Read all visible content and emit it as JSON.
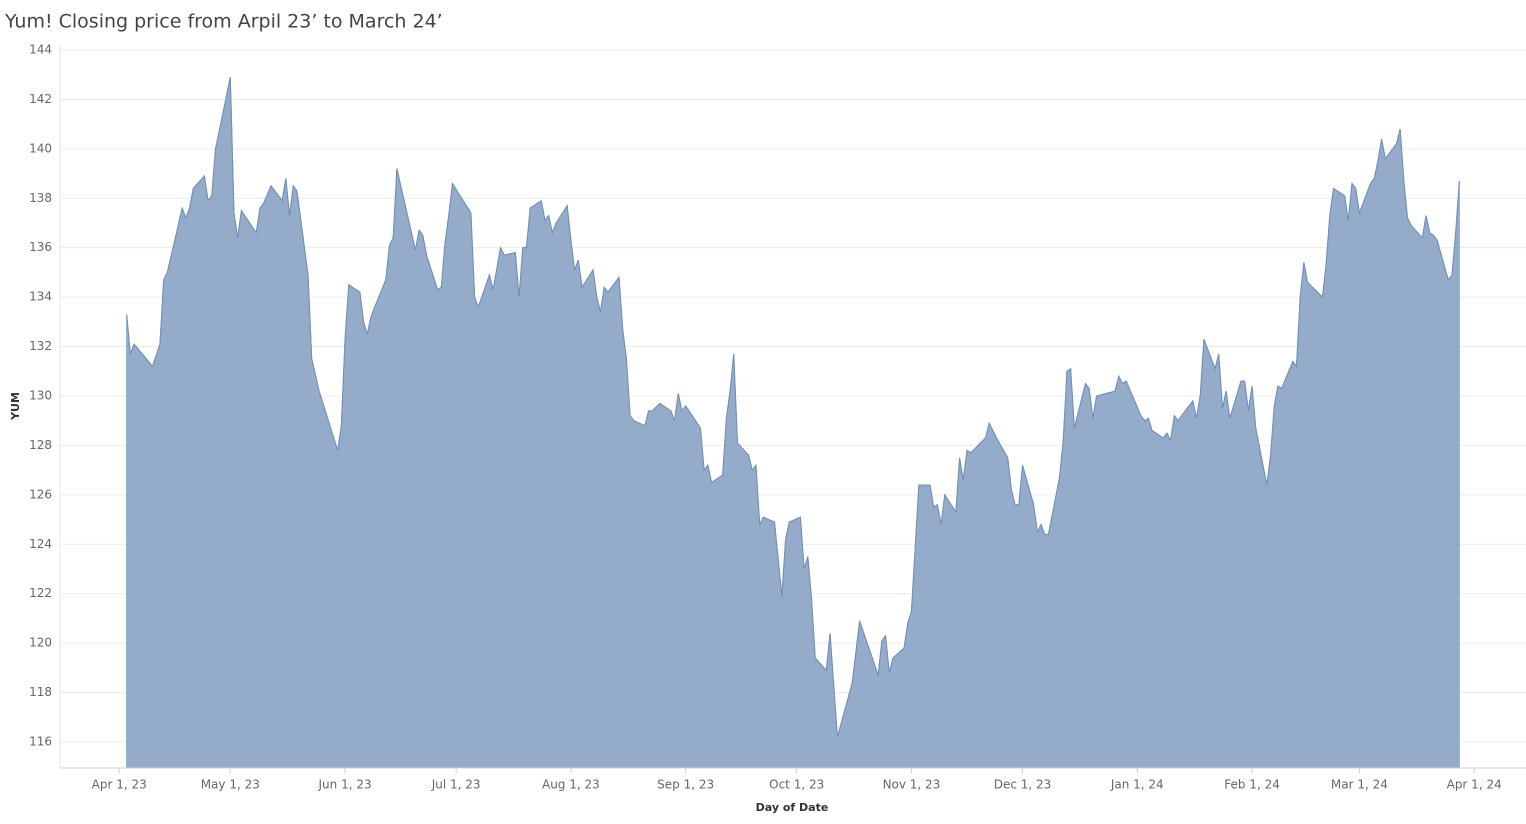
{
  "chart_data": {
    "type": "area",
    "title": "Yum! Closing price from Arpil 23’ to March 24’",
    "x_label": "Day of Date",
    "y_label": "YUM",
    "color": "#8ea8c7",
    "grid": true,
    "xlim": [
      "2023-03-16",
      "2024-04-15"
    ],
    "ylim": [
      114.95,
      144.2
    ],
    "yticks": [
      116,
      118,
      120,
      122,
      124,
      126,
      128,
      130,
      132,
      134,
      136,
      138,
      140,
      142,
      144
    ],
    "xticks": [
      {
        "value": "2023-04-01",
        "label": "Apr 1, 23"
      },
      {
        "value": "2023-05-01",
        "label": "May 1, 23"
      },
      {
        "value": "2023-06-01",
        "label": "Jun 1, 23"
      },
      {
        "value": "2023-07-01",
        "label": "Jul 1, 23"
      },
      {
        "value": "2023-08-01",
        "label": "Aug 1, 23"
      },
      {
        "value": "2023-09-01",
        "label": "Sep 1, 23"
      },
      {
        "value": "2023-10-01",
        "label": "Oct 1, 23"
      },
      {
        "value": "2023-11-01",
        "label": "Nov 1, 23"
      },
      {
        "value": "2023-12-01",
        "label": "Dec 1, 23"
      },
      {
        "value": "2024-01-01",
        "label": "Jan 1, 24"
      },
      {
        "value": "2024-02-01",
        "label": "Feb 1, 24"
      },
      {
        "value": "2024-03-01",
        "label": "Mar 1, 24"
      },
      {
        "value": "2024-04-01",
        "label": "Apr 1, 24"
      }
    ],
    "x": [
      "2023-04-03",
      "2023-04-04",
      "2023-04-05",
      "2023-04-10",
      "2023-04-12",
      "2023-04-13",
      "2023-04-14",
      "2023-04-18",
      "2023-04-19",
      "2023-04-20",
      "2023-04-21",
      "2023-04-24",
      "2023-04-25",
      "2023-04-26",
      "2023-04-27",
      "2023-04-28",
      "2023-05-01",
      "2023-05-02",
      "2023-05-03",
      "2023-05-04",
      "2023-05-08",
      "2023-05-09",
      "2023-05-10",
      "2023-05-12",
      "2023-05-15",
      "2023-05-16",
      "2023-05-17",
      "2023-05-18",
      "2023-05-19",
      "2023-05-22",
      "2023-05-23",
      "2023-05-25",
      "2023-05-30",
      "2023-05-31",
      "2023-06-01",
      "2023-06-02",
      "2023-06-05",
      "2023-06-06",
      "2023-06-07",
      "2023-06-08",
      "2023-06-09",
      "2023-06-12",
      "2023-06-13",
      "2023-06-14",
      "2023-06-15",
      "2023-06-20",
      "2023-06-21",
      "2023-06-22",
      "2023-06-23",
      "2023-06-26",
      "2023-06-27",
      "2023-06-28",
      "2023-06-29",
      "2023-06-30",
      "2023-07-05",
      "2023-07-06",
      "2023-07-07",
      "2023-07-10",
      "2023-07-11",
      "2023-07-13",
      "2023-07-14",
      "2023-07-17",
      "2023-07-18",
      "2023-07-19",
      "2023-07-20",
      "2023-07-21",
      "2023-07-24",
      "2023-07-25",
      "2023-07-26",
      "2023-07-27",
      "2023-07-28",
      "2023-07-31",
      "2023-08-01",
      "2023-08-02",
      "2023-08-03",
      "2023-08-04",
      "2023-08-07",
      "2023-08-08",
      "2023-08-09",
      "2023-08-10",
      "2023-08-11",
      "2023-08-14",
      "2023-08-15",
      "2023-08-16",
      "2023-08-17",
      "2023-08-18",
      "2023-08-21",
      "2023-08-22",
      "2023-08-23",
      "2023-08-25",
      "2023-08-28",
      "2023-08-29",
      "2023-08-30",
      "2023-08-31",
      "2023-09-01",
      "2023-09-05",
      "2023-09-06",
      "2023-09-07",
      "2023-09-08",
      "2023-09-11",
      "2023-09-12",
      "2023-09-13",
      "2023-09-14",
      "2023-09-15",
      "2023-09-18",
      "2023-09-19",
      "2023-09-20",
      "2023-09-21",
      "2023-09-22",
      "2023-09-25",
      "2023-09-27",
      "2023-09-28",
      "2023-09-29",
      "2023-10-02",
      "2023-10-03",
      "2023-10-04",
      "2023-10-05",
      "2023-10-06",
      "2023-10-09",
      "2023-10-10",
      "2023-10-12",
      "2023-10-16",
      "2023-10-18",
      "2023-10-23",
      "2023-10-24",
      "2023-10-25",
      "2023-10-26",
      "2023-10-27",
      "2023-10-30",
      "2023-10-31",
      "2023-11-01",
      "2023-11-03",
      "2023-11-06",
      "2023-11-07",
      "2023-11-08",
      "2023-11-09",
      "2023-11-10",
      "2023-11-13",
      "2023-11-14",
      "2023-11-15",
      "2023-11-16",
      "2023-11-17",
      "2023-11-21",
      "2023-11-22",
      "2023-11-24",
      "2023-11-27",
      "2023-11-28",
      "2023-11-29",
      "2023-11-30",
      "2023-12-01",
      "2023-12-04",
      "2023-12-05",
      "2023-12-06",
      "2023-12-07",
      "2023-12-08",
      "2023-12-11",
      "2023-12-12",
      "2023-12-13",
      "2023-12-14",
      "2023-12-15",
      "2023-12-18",
      "2023-12-19",
      "2023-12-20",
      "2023-12-21",
      "2023-12-26",
      "2023-12-27",
      "2023-12-28",
      "2023-12-29",
      "2024-01-02",
      "2024-01-03",
      "2024-01-04",
      "2024-01-05",
      "2024-01-08",
      "2024-01-09",
      "2024-01-10",
      "2024-01-11",
      "2024-01-12",
      "2024-01-16",
      "2024-01-17",
      "2024-01-18",
      "2024-01-19",
      "2024-01-22",
      "2024-01-23",
      "2024-01-24",
      "2024-01-25",
      "2024-01-26",
      "2024-01-29",
      "2024-01-30",
      "2024-01-31",
      "2024-02-01",
      "2024-02-02",
      "2024-02-05",
      "2024-02-06",
      "2024-02-07",
      "2024-02-08",
      "2024-02-09",
      "2024-02-12",
      "2024-02-13",
      "2024-02-14",
      "2024-02-15",
      "2024-02-16",
      "2024-02-20",
      "2024-02-21",
      "2024-02-22",
      "2024-02-23",
      "2024-02-26",
      "2024-02-27",
      "2024-02-28",
      "2024-02-29",
      "2024-03-01",
      "2024-03-04",
      "2024-03-05",
      "2024-03-06",
      "2024-03-07",
      "2024-03-08",
      "2024-03-11",
      "2024-03-12",
      "2024-03-13",
      "2024-03-14",
      "2024-03-15",
      "2024-03-18",
      "2024-03-19",
      "2024-03-20",
      "2024-03-21",
      "2024-03-22",
      "2024-03-25",
      "2024-03-26",
      "2024-03-27",
      "2024-03-28"
    ],
    "values": [
      133.3,
      131.7,
      132.1,
      131.2,
      132.1,
      134.7,
      135.0,
      137.6,
      137.2,
      137.6,
      138.4,
      138.9,
      137.9,
      138.1,
      140.0,
      140.7,
      142.9,
      137.4,
      136.4,
      137.5,
      136.6,
      137.6,
      137.8,
      138.5,
      137.9,
      138.8,
      137.3,
      138.5,
      138.3,
      134.9,
      131.5,
      130.2,
      127.8,
      128.8,
      132.3,
      134.5,
      134.2,
      133.0,
      132.5,
      133.2,
      133.6,
      134.7,
      136.1,
      136.4,
      139.2,
      135.9,
      136.7,
      136.5,
      135.7,
      134.3,
      134.4,
      136.2,
      137.3,
      138.6,
      137.4,
      134.0,
      133.6,
      134.9,
      134.3,
      136.0,
      135.7,
      135.8,
      134.0,
      136.0,
      136.0,
      137.6,
      137.9,
      137.1,
      137.3,
      136.6,
      137.0,
      137.7,
      136.3,
      135.1,
      135.5,
      134.4,
      135.1,
      134.0,
      133.4,
      134.4,
      134.2,
      134.8,
      132.7,
      131.5,
      129.2,
      129.0,
      128.8,
      129.4,
      129.4,
      129.7,
      129.4,
      129.0,
      130.1,
      129.4,
      129.6,
      128.7,
      127.0,
      127.2,
      126.5,
      126.8,
      129.1,
      130.2,
      131.7,
      128.1,
      127.6,
      127.0,
      127.2,
      124.8,
      125.1,
      124.9,
      121.9,
      124.2,
      124.9,
      125.1,
      123.0,
      123.5,
      121.8,
      119.4,
      118.9,
      120.4,
      116.2,
      118.4,
      120.9,
      118.7,
      120.1,
      120.3,
      118.8,
      119.4,
      119.8,
      120.8,
      121.3,
      126.4,
      126.4,
      125.5,
      125.6,
      124.8,
      126.0,
      125.3,
      127.5,
      126.6,
      127.8,
      127.7,
      128.3,
      128.9,
      128.3,
      127.5,
      126.2,
      125.6,
      125.6,
      127.2,
      125.6,
      124.5,
      124.8,
      124.4,
      124.4,
      126.7,
      128.2,
      131.0,
      131.1,
      128.7,
      130.5,
      130.3,
      129.1,
      130.0,
      130.2,
      130.8,
      130.5,
      130.6,
      129.2,
      129.0,
      129.1,
      128.6,
      128.3,
      128.5,
      128.2,
      129.2,
      129.0,
      129.8,
      129.1,
      130.0,
      132.3,
      131.1,
      131.7,
      129.5,
      130.2,
      129.1,
      130.6,
      130.6,
      129.4,
      130.4,
      128.7,
      126.4,
      127.6,
      129.6,
      130.4,
      130.3,
      131.4,
      131.2,
      134.0,
      135.4,
      134.6,
      134.0,
      135.3,
      137.3,
      138.4,
      138.1,
      137.1,
      138.6,
      138.4,
      137.4,
      138.6,
      138.8,
      139.5,
      140.4,
      139.6,
      140.2,
      140.8,
      138.7,
      137.2,
      136.9,
      136.4,
      137.3,
      136.6,
      136.5,
      136.3,
      134.7,
      134.9,
      136.6,
      138.7
    ]
  }
}
